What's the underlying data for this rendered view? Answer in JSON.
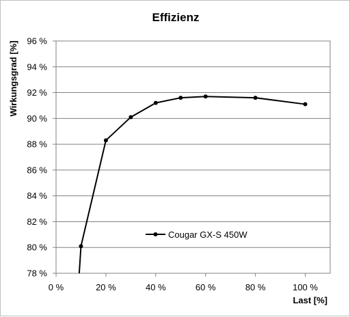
{
  "chart_data": {
    "type": "line",
    "title": "Effizienz",
    "xlabel": "Last [%]",
    "ylabel": "Wirkungsgrad [%]",
    "xlim": [
      0,
      110
    ],
    "ylim": [
      78,
      96
    ],
    "x_ticks": [
      0,
      20,
      40,
      60,
      80,
      100
    ],
    "y_ticks": [
      78,
      80,
      82,
      84,
      86,
      88,
      90,
      92,
      94,
      96
    ],
    "x_tick_labels": [
      "0 %",
      "20 %",
      "40 %",
      "60 %",
      "80 %",
      "100 %"
    ],
    "y_tick_labels": [
      "78 %",
      "80 %",
      "82 %",
      "84 %",
      "86 %",
      "88 %",
      "90 %",
      "92 %",
      "94 %",
      "96 %"
    ],
    "grid": "horizontal",
    "legend_position": "center-left",
    "series": [
      {
        "name": "Cougar GX-S 450W",
        "color": "#000000",
        "x": [
          10,
          20,
          30,
          40,
          50,
          60,
          80,
          100
        ],
        "y": [
          80.1,
          88.3,
          90.1,
          91.2,
          91.6,
          91.7,
          91.6,
          91.1
        ],
        "line_start": {
          "x": 9.3,
          "y": 78
        }
      }
    ]
  }
}
